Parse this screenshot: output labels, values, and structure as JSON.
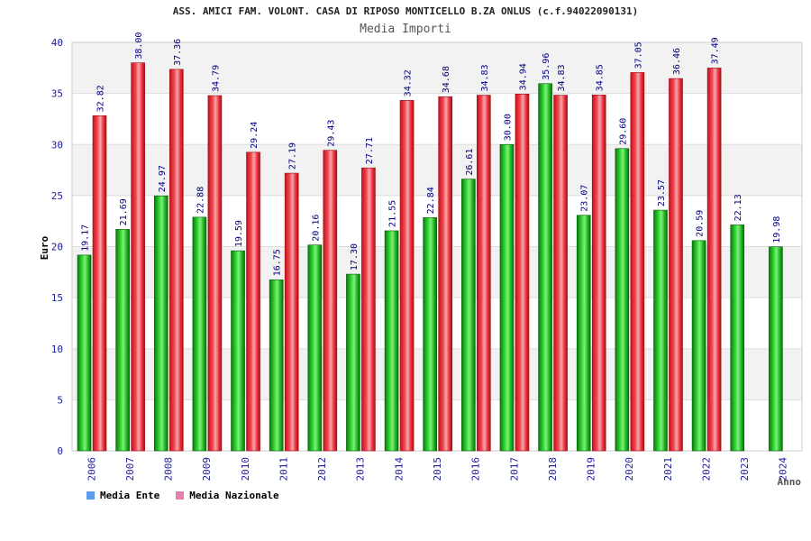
{
  "chart_data": {
    "type": "bar",
    "title": "ASS. AMICI FAM. VOLONT. CASA DI RIPOSO MONTICELLO B.ZA ONLUS (c.f.94022090131)",
    "subtitle": "Media Importi",
    "xlabel": "Anno",
    "ylabel": "Euro",
    "ylim": [
      0,
      40
    ],
    "yticks": [
      "0",
      "5",
      "10",
      "15",
      "20",
      "25",
      "30",
      "35",
      "40"
    ],
    "categories": [
      "2006",
      "2007",
      "2008",
      "2009",
      "2010",
      "2011",
      "2012",
      "2013",
      "2014",
      "2015",
      "2016",
      "2017",
      "2018",
      "2019",
      "2020",
      "2021",
      "2022",
      "2023",
      "2024"
    ],
    "series": [
      {
        "name": "Media Ente",
        "values": [
          19.17,
          21.69,
          24.97,
          22.88,
          19.59,
          16.75,
          20.16,
          17.3,
          21.55,
          22.84,
          26.61,
          30.0,
          35.96,
          23.07,
          29.6,
          23.57,
          20.59,
          22.13,
          19.98
        ],
        "labels": [
          "19.17",
          "21.69",
          "24.97",
          "22.88",
          "19.59",
          "16.75",
          "20.16",
          "17.30",
          "21.55",
          "22.84",
          "26.61",
          "30.00",
          "35.96",
          "23.07",
          "29.60",
          "23.57",
          "20.59",
          "22.13",
          "19.98"
        ]
      },
      {
        "name": "Media Nazionale",
        "values": [
          32.82,
          38.0,
          37.36,
          34.79,
          29.24,
          27.19,
          29.43,
          27.71,
          34.32,
          34.68,
          34.83,
          34.94,
          34.83,
          34.85,
          37.05,
          36.46,
          37.49,
          null,
          null
        ],
        "labels": [
          "32.82",
          "38.00",
          "37.36",
          "34.79",
          "29.24",
          "27.19",
          "29.43",
          "27.71",
          "34.32",
          "34.68",
          "34.83",
          "34.94",
          "34.83",
          "34.85",
          "37.05",
          "36.46",
          "37.49",
          "",
          ""
        ]
      }
    ],
    "legend": [
      {
        "label": "Media Ente",
        "color": "#5b9bf0"
      },
      {
        "label": "Media Nazionale",
        "color": "#e67fb0"
      }
    ],
    "grid": true
  }
}
